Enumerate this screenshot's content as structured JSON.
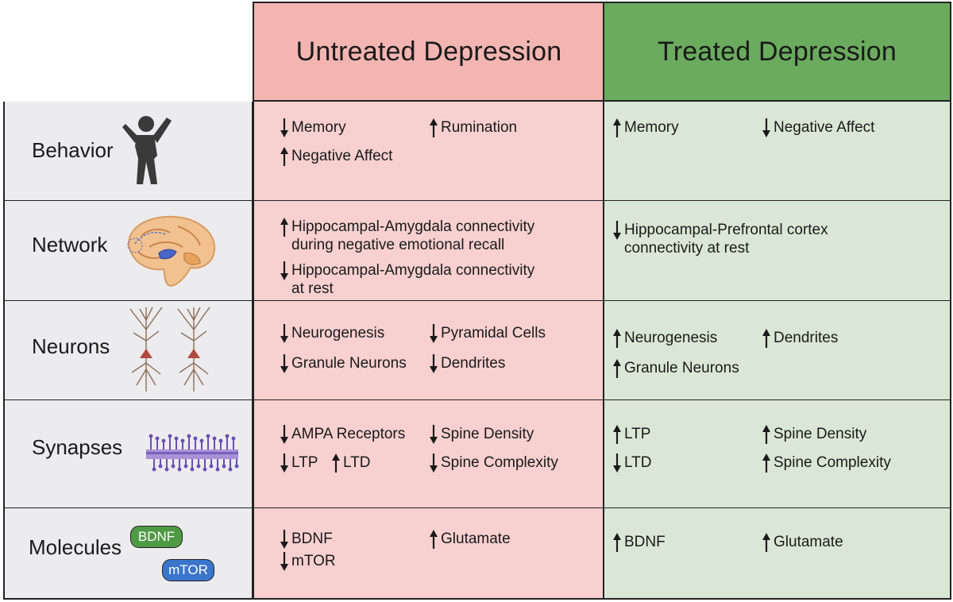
{
  "colors": {
    "untreated_header": "#f2b5b2",
    "untreated_cell": "#f7d0cf",
    "treated_header": "#6aab5e",
    "treated_cell": "#dbe7d6",
    "label_bg": "#ecebed",
    "badge_bdnf": "#4f9a44",
    "badge_mtor": "#3a76cc"
  },
  "headers": {
    "untreated": "Untreated Depression",
    "treated": "Treated Depression"
  },
  "rows": [
    {
      "label": "Behavior",
      "icon": "person-icon",
      "untreated": [
        {
          "dir": "down",
          "lines": [
            "Memory"
          ]
        },
        {
          "dir": "up",
          "lines": [
            "Rumination"
          ]
        },
        {
          "dir": "up",
          "lines": [
            "Negative Affect"
          ]
        }
      ],
      "treated": [
        {
          "dir": "up",
          "lines": [
            "Memory"
          ]
        },
        {
          "dir": "down",
          "lines": [
            "Negative Affect"
          ]
        }
      ]
    },
    {
      "label": "Network",
      "icon": "brain-icon",
      "untreated": [
        {
          "dir": "up",
          "lines": [
            "Hippocampal-Amygdala connectivity",
            "during negative emotional recall"
          ]
        },
        {
          "dir": "down",
          "lines": [
            "Hippocampal-Amygdala connectivity",
            "at rest"
          ]
        }
      ],
      "treated": [
        {
          "dir": "down",
          "lines": [
            "Hippocampal-Prefrontal cortex",
            "connectivity at rest"
          ]
        }
      ]
    },
    {
      "label": "Neurons",
      "icon": "neuron-icon",
      "untreated": [
        {
          "dir": "down",
          "lines": [
            "Neurogenesis"
          ]
        },
        {
          "dir": "down",
          "lines": [
            "Pyramidal Cells"
          ]
        },
        {
          "dir": "down",
          "lines": [
            "Granule Neurons"
          ]
        },
        {
          "dir": "down",
          "lines": [
            "Dendrites"
          ]
        }
      ],
      "treated": [
        {
          "dir": "up",
          "lines": [
            "Neurogenesis"
          ]
        },
        {
          "dir": "up",
          "lines": [
            "Dendrites"
          ]
        },
        {
          "dir": "up",
          "lines": [
            "Granule Neurons"
          ]
        }
      ]
    },
    {
      "label": "Synapses",
      "icon": "synapse-icon",
      "untreated": [
        {
          "dir": "down",
          "lines": [
            "AMPA Receptors"
          ]
        },
        {
          "dir": "down",
          "lines": [
            "Spine Density"
          ]
        },
        {
          "dir": "down",
          "lines": [
            "LTP"
          ]
        },
        {
          "dir": "up",
          "lines": [
            "LTD"
          ]
        },
        {
          "dir": "down",
          "lines": [
            "Spine Complexity"
          ]
        }
      ],
      "treated": [
        {
          "dir": "up",
          "lines": [
            "LTP"
          ]
        },
        {
          "dir": "up",
          "lines": [
            "Spine Density"
          ]
        },
        {
          "dir": "down",
          "lines": [
            "LTD"
          ]
        },
        {
          "dir": "up",
          "lines": [
            "Spine Complexity"
          ]
        }
      ]
    },
    {
      "label": "Molecules",
      "icon": "molecule-badges",
      "badges": [
        "BDNF",
        "mTOR"
      ],
      "untreated": [
        {
          "dir": "down",
          "lines": [
            "BDNF"
          ]
        },
        {
          "dir": "up",
          "lines": [
            "Glutamate"
          ]
        },
        {
          "dir": "down",
          "lines": [
            "mTOR"
          ]
        }
      ],
      "treated": [
        {
          "dir": "up",
          "lines": [
            "BDNF"
          ]
        },
        {
          "dir": "up",
          "lines": [
            "Glutamate"
          ]
        }
      ]
    }
  ]
}
